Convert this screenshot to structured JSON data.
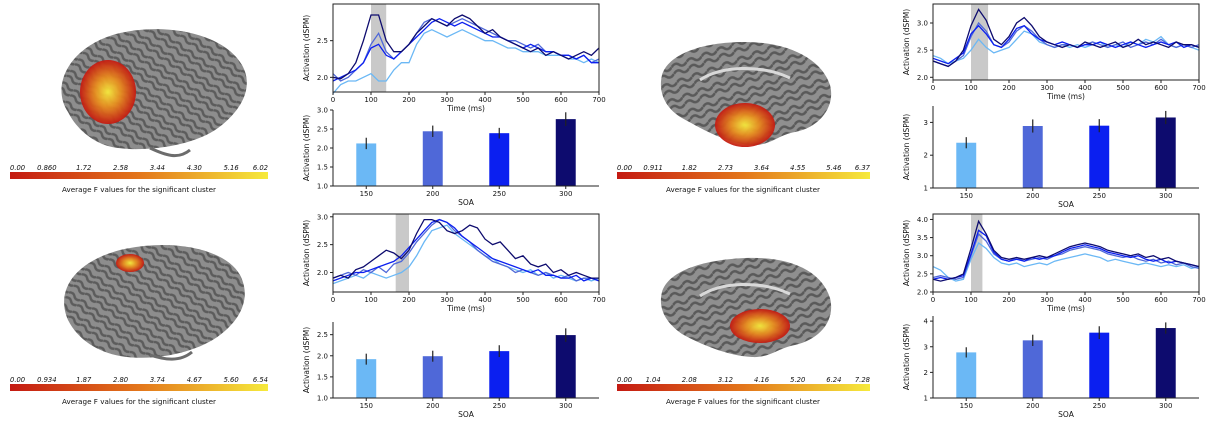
{
  "colorbar_label": "Average F values for the significant cluster",
  "soa_colors": {
    "150": "#6bb8f5",
    "200": "#4f68d8",
    "250": "#0b1ff0",
    "300": "#0d0b6e"
  },
  "activation_color": {
    "low": "#c41a12",
    "mid": "#e3761b",
    "high": "#f6ea3c"
  },
  "chart_data": [
    {
      "panel": "top-left",
      "type": "line",
      "xlabel": "Time (ms)",
      "ylabel": "Activation (dSPM)",
      "xlim": [
        0,
        700
      ],
      "ylim": [
        1.8,
        3.0
      ],
      "xticks": [
        "0",
        "100",
        "200",
        "300",
        "400",
        "500",
        "600",
        "700"
      ],
      "xtick_values": [
        0,
        100,
        200,
        300,
        400,
        500,
        600,
        700
      ],
      "yticks": [
        "2.0",
        "2.5"
      ],
      "ytick_values": [
        2.0,
        2.5
      ],
      "shaded_window": [
        100,
        140
      ],
      "x": [
        0,
        20,
        40,
        60,
        80,
        100,
        120,
        140,
        160,
        180,
        200,
        220,
        240,
        260,
        280,
        300,
        320,
        340,
        360,
        380,
        400,
        420,
        440,
        460,
        480,
        500,
        520,
        540,
        560,
        580,
        600,
        620,
        640,
        660,
        680,
        700
      ],
      "series": [
        {
          "name": "150",
          "values": [
            1.78,
            1.9,
            1.95,
            1.95,
            2.0,
            2.05,
            1.95,
            1.95,
            2.1,
            2.2,
            2.2,
            2.45,
            2.6,
            2.65,
            2.6,
            2.55,
            2.6,
            2.65,
            2.6,
            2.55,
            2.5,
            2.5,
            2.45,
            2.4,
            2.4,
            2.35,
            2.35,
            2.35,
            2.3,
            2.3,
            2.3,
            2.25,
            2.25,
            2.2,
            2.25,
            2.2
          ]
        },
        {
          "name": "200",
          "values": [
            2.05,
            1.95,
            2.0,
            2.1,
            2.2,
            2.45,
            2.6,
            2.35,
            2.25,
            2.35,
            2.45,
            2.6,
            2.75,
            2.8,
            2.75,
            2.7,
            2.75,
            2.8,
            2.75,
            2.7,
            2.65,
            2.6,
            2.55,
            2.5,
            2.5,
            2.45,
            2.4,
            2.45,
            2.35,
            2.35,
            2.3,
            2.3,
            2.25,
            2.3,
            2.2,
            2.25
          ]
        },
        {
          "name": "250",
          "values": [
            1.95,
            2.0,
            2.05,
            2.1,
            2.2,
            2.4,
            2.45,
            2.3,
            2.25,
            2.35,
            2.45,
            2.55,
            2.65,
            2.75,
            2.8,
            2.75,
            2.7,
            2.75,
            2.7,
            2.65,
            2.6,
            2.55,
            2.55,
            2.5,
            2.45,
            2.4,
            2.45,
            2.4,
            2.35,
            2.35,
            2.3,
            2.3,
            2.25,
            2.3,
            2.2,
            2.2
          ]
        },
        {
          "name": "300",
          "values": [
            2.0,
            1.98,
            2.05,
            2.2,
            2.5,
            2.85,
            2.85,
            2.5,
            2.35,
            2.35,
            2.45,
            2.6,
            2.7,
            2.8,
            2.75,
            2.7,
            2.8,
            2.85,
            2.8,
            2.7,
            2.6,
            2.65,
            2.55,
            2.5,
            2.45,
            2.4,
            2.35,
            2.4,
            2.3,
            2.35,
            2.3,
            2.25,
            2.3,
            2.35,
            2.3,
            2.4
          ]
        }
      ]
    },
    {
      "panel": "top-left",
      "type": "bar",
      "categories": [
        "150",
        "200",
        "250",
        "300"
      ],
      "values": [
        2.12,
        2.44,
        2.39,
        2.76
      ],
      "errors": [
        0.15,
        0.15,
        0.14,
        0.18
      ],
      "xlabel": "SOA",
      "ylabel": "Activation (dSPM)",
      "ylim": [
        1.0,
        3.0
      ],
      "yticks": [
        "1.0",
        "1.5",
        "2.0",
        "2.5",
        "3.0"
      ],
      "ytick_values": [
        1.0,
        1.5,
        2.0,
        2.5,
        3.0
      ]
    },
    {
      "panel": "top-right",
      "type": "line",
      "xlabel": "Time (ms)",
      "ylabel": "Activation (dSPM)",
      "xlim": [
        0,
        700
      ],
      "ylim": [
        1.95,
        3.35
      ],
      "xticks": [
        "0",
        "100",
        "200",
        "300",
        "400",
        "500",
        "600",
        "700"
      ],
      "xtick_values": [
        0,
        100,
        200,
        300,
        400,
        500,
        600,
        700
      ],
      "yticks": [
        "2.0",
        "2.5",
        "3.0"
      ],
      "ytick_values": [
        2.0,
        2.5,
        3.0
      ],
      "shaded_window": [
        100,
        145
      ],
      "x": [
        0,
        20,
        40,
        60,
        80,
        100,
        120,
        140,
        160,
        180,
        200,
        220,
        240,
        260,
        280,
        300,
        320,
        340,
        360,
        380,
        400,
        420,
        440,
        460,
        480,
        500,
        520,
        540,
        560,
        580,
        600,
        620,
        640,
        660,
        680,
        700
      ],
      "series": [
        {
          "name": "150",
          "values": [
            2.4,
            2.35,
            2.25,
            2.3,
            2.35,
            2.5,
            2.7,
            2.55,
            2.45,
            2.5,
            2.55,
            2.7,
            2.85,
            2.8,
            2.65,
            2.6,
            2.55,
            2.6,
            2.55,
            2.6,
            2.55,
            2.6,
            2.65,
            2.55,
            2.6,
            2.55,
            2.65,
            2.6,
            2.7,
            2.65,
            2.75,
            2.6,
            2.55,
            2.6,
            2.55,
            2.5
          ]
        },
        {
          "name": "200",
          "values": [
            2.3,
            2.25,
            2.2,
            2.3,
            2.4,
            2.75,
            3.0,
            2.85,
            2.6,
            2.55,
            2.65,
            2.85,
            2.95,
            2.85,
            2.7,
            2.6,
            2.55,
            2.6,
            2.6,
            2.55,
            2.6,
            2.65,
            2.6,
            2.55,
            2.6,
            2.65,
            2.55,
            2.6,
            2.65,
            2.6,
            2.7,
            2.6,
            2.55,
            2.6,
            2.55,
            2.6
          ]
        },
        {
          "name": "250",
          "values": [
            2.35,
            2.3,
            2.25,
            2.35,
            2.45,
            2.8,
            2.95,
            2.8,
            2.6,
            2.55,
            2.7,
            2.9,
            2.95,
            2.8,
            2.7,
            2.65,
            2.6,
            2.65,
            2.6,
            2.55,
            2.6,
            2.6,
            2.65,
            2.6,
            2.55,
            2.6,
            2.65,
            2.6,
            2.55,
            2.6,
            2.65,
            2.6,
            2.65,
            2.55,
            2.6,
            2.55
          ]
        },
        {
          "name": "300",
          "values": [
            2.3,
            2.25,
            2.2,
            2.3,
            2.5,
            2.95,
            3.25,
            3.05,
            2.7,
            2.6,
            2.75,
            3.0,
            3.1,
            2.95,
            2.75,
            2.65,
            2.6,
            2.55,
            2.6,
            2.55,
            2.65,
            2.6,
            2.55,
            2.6,
            2.65,
            2.55,
            2.6,
            2.7,
            2.6,
            2.65,
            2.6,
            2.55,
            2.65,
            2.6,
            2.6,
            2.55
          ]
        }
      ]
    },
    {
      "panel": "top-right",
      "type": "bar",
      "categories": [
        "150",
        "200",
        "250",
        "300"
      ],
      "values": [
        2.38,
        2.89,
        2.9,
        3.15
      ],
      "errors": [
        0.17,
        0.2,
        0.2,
        0.2
      ],
      "xlabel": "SOA",
      "ylabel": "Activation (dSPM)",
      "ylim": [
        1.0,
        3.5
      ],
      "yticks": [
        "1",
        "2",
        "3"
      ],
      "ytick_values": [
        1,
        2,
        3
      ]
    },
    {
      "panel": "bottom-left",
      "type": "line",
      "xlabel": "Time (ms)",
      "ylabel": "Activation (dSPM)",
      "xlim": [
        0,
        700
      ],
      "ylim": [
        1.65,
        3.05
      ],
      "xticks": [
        "0",
        "100",
        "200",
        "300",
        "400",
        "500",
        "600",
        "700"
      ],
      "xtick_values": [
        0,
        100,
        200,
        300,
        400,
        500,
        600,
        700
      ],
      "yticks": [
        "2.0",
        "2.5",
        "3.0"
      ],
      "ytick_values": [
        2.0,
        2.5,
        3.0
      ],
      "shaded_window": [
        165,
        200
      ],
      "x": [
        0,
        20,
        40,
        60,
        80,
        100,
        120,
        140,
        160,
        180,
        200,
        220,
        240,
        260,
        280,
        300,
        320,
        340,
        360,
        380,
        400,
        420,
        440,
        460,
        480,
        500,
        520,
        540,
        560,
        580,
        600,
        620,
        640,
        660,
        680,
        700
      ],
      "series": [
        {
          "name": "150",
          "values": [
            1.8,
            1.85,
            1.9,
            1.95,
            1.9,
            2.0,
            1.95,
            1.9,
            1.95,
            2.0,
            2.1,
            2.3,
            2.55,
            2.75,
            2.8,
            2.85,
            2.7,
            2.6,
            2.5,
            2.4,
            2.3,
            2.25,
            2.15,
            2.1,
            2.05,
            2.0,
            2.05,
            1.95,
            2.0,
            1.9,
            1.95,
            1.9,
            1.85,
            1.9,
            1.85,
            1.9
          ]
        },
        {
          "name": "200",
          "values": [
            1.9,
            1.95,
            2.0,
            1.95,
            2.05,
            2.0,
            2.1,
            2.0,
            2.15,
            2.2,
            2.35,
            2.55,
            2.7,
            2.85,
            2.95,
            2.9,
            2.75,
            2.65,
            2.55,
            2.4,
            2.3,
            2.2,
            2.15,
            2.1,
            2.0,
            2.05,
            2.0,
            1.95,
            2.0,
            1.95,
            1.9,
            1.95,
            1.85,
            1.9,
            1.9,
            1.85
          ]
        },
        {
          "name": "250",
          "values": [
            1.85,
            1.9,
            1.95,
            2.0,
            2.0,
            2.05,
            2.1,
            2.15,
            2.2,
            2.3,
            2.45,
            2.6,
            2.75,
            2.9,
            2.95,
            2.9,
            2.8,
            2.65,
            2.55,
            2.45,
            2.35,
            2.25,
            2.2,
            2.15,
            2.1,
            2.05,
            2.0,
            2.05,
            1.95,
            1.95,
            1.9,
            1.9,
            1.95,
            1.85,
            1.9,
            1.85
          ]
        },
        {
          "name": "300",
          "values": [
            1.9,
            1.95,
            1.9,
            2.05,
            2.1,
            2.2,
            2.3,
            2.4,
            2.35,
            2.25,
            2.4,
            2.7,
            2.95,
            2.95,
            2.9,
            2.75,
            2.7,
            2.75,
            2.85,
            2.8,
            2.6,
            2.5,
            2.55,
            2.4,
            2.25,
            2.3,
            2.15,
            2.1,
            2.15,
            2.0,
            2.05,
            1.95,
            2.0,
            1.95,
            1.9,
            1.9
          ]
        }
      ]
    },
    {
      "panel": "bottom-left",
      "type": "bar",
      "categories": [
        "150",
        "200",
        "250",
        "300"
      ],
      "values": [
        1.92,
        1.99,
        2.11,
        2.49
      ],
      "errors": [
        0.13,
        0.13,
        0.14,
        0.16
      ],
      "xlabel": "SOA",
      "ylabel": "Activation (dSPM)",
      "ylim": [
        1.0,
        2.8
      ],
      "yticks": [
        "1.0",
        "1.5",
        "2.0",
        "2.5"
      ],
      "ytick_values": [
        1.0,
        1.5,
        2.0,
        2.5
      ]
    },
    {
      "panel": "bottom-right",
      "type": "line",
      "xlabel": "Time (ms)",
      "ylabel": "Activation (dSPM)",
      "xlim": [
        0,
        700
      ],
      "ylim": [
        2.0,
        4.15
      ],
      "xticks": [
        "0",
        "100",
        "200",
        "300",
        "400",
        "500",
        "600",
        "700"
      ],
      "xtick_values": [
        0,
        100,
        200,
        300,
        400,
        500,
        600,
        700
      ],
      "yticks": [
        "2.0",
        "2.5",
        "3.0",
        "3.5",
        "4.0"
      ],
      "ytick_values": [
        2.0,
        2.5,
        3.0,
        3.5,
        4.0
      ],
      "shaded_window": [
        100,
        130
      ],
      "x": [
        0,
        20,
        40,
        60,
        80,
        100,
        120,
        140,
        160,
        180,
        200,
        220,
        240,
        260,
        280,
        300,
        320,
        340,
        360,
        380,
        400,
        420,
        440,
        460,
        480,
        500,
        520,
        540,
        560,
        580,
        600,
        620,
        640,
        660,
        680,
        700
      ],
      "series": [
        {
          "name": "150",
          "values": [
            2.7,
            2.6,
            2.4,
            2.3,
            2.35,
            2.9,
            3.35,
            3.2,
            2.95,
            2.8,
            2.75,
            2.8,
            2.7,
            2.75,
            2.8,
            2.75,
            2.85,
            2.9,
            2.95,
            3.0,
            3.05,
            3.0,
            2.95,
            2.85,
            2.9,
            2.85,
            2.8,
            2.75,
            2.8,
            2.75,
            2.7,
            2.75,
            2.7,
            2.75,
            2.65,
            2.7
          ]
        },
        {
          "name": "200",
          "values": [
            2.4,
            2.45,
            2.4,
            2.35,
            2.4,
            3.0,
            3.6,
            3.4,
            3.05,
            2.9,
            2.85,
            2.95,
            2.85,
            2.9,
            2.95,
            2.9,
            3.0,
            3.05,
            3.15,
            3.2,
            3.25,
            3.2,
            3.15,
            3.05,
            3.0,
            2.95,
            3.0,
            2.9,
            2.85,
            2.9,
            2.8,
            2.85,
            2.75,
            2.8,
            2.7,
            2.65
          ]
        },
        {
          "name": "250",
          "values": [
            2.35,
            2.4,
            2.35,
            2.4,
            2.45,
            3.05,
            3.7,
            3.55,
            3.1,
            2.9,
            2.85,
            2.9,
            2.85,
            2.95,
            2.9,
            2.95,
            3.0,
            3.1,
            3.2,
            3.25,
            3.3,
            3.25,
            3.2,
            3.1,
            3.05,
            3.0,
            2.95,
            3.0,
            2.9,
            2.85,
            2.9,
            2.8,
            2.85,
            2.8,
            2.75,
            2.7
          ]
        },
        {
          "name": "300",
          "values": [
            2.35,
            2.3,
            2.35,
            2.4,
            2.5,
            3.2,
            3.95,
            3.6,
            3.15,
            2.95,
            2.9,
            2.95,
            2.9,
            2.95,
            3.0,
            2.95,
            3.05,
            3.15,
            3.25,
            3.3,
            3.35,
            3.3,
            3.25,
            3.15,
            3.1,
            3.05,
            3.0,
            3.05,
            2.95,
            3.0,
            2.9,
            2.95,
            2.85,
            2.8,
            2.75,
            2.7
          ]
        }
      ]
    },
    {
      "panel": "bottom-right",
      "type": "bar",
      "categories": [
        "150",
        "200",
        "250",
        "300"
      ],
      "values": [
        2.78,
        3.25,
        3.55,
        3.73
      ],
      "errors": [
        0.2,
        0.22,
        0.25,
        0.22
      ],
      "xlabel": "SOA",
      "ylabel": "Activation (dSPM)",
      "ylim": [
        1.0,
        4.2
      ],
      "yticks": [
        "1",
        "2",
        "3",
        "4"
      ],
      "ytick_values": [
        1,
        2,
        3,
        4
      ]
    }
  ],
  "colorbars": [
    {
      "panel": "top-left",
      "ticks": [
        "0.00",
        "0.860",
        "1.72",
        "2.58",
        "3.44",
        "4.30",
        "5.16",
        "6.02"
      ]
    },
    {
      "panel": "top-right",
      "ticks": [
        "0.00",
        "0.911",
        "1.82",
        "2.73",
        "3.64",
        "4.55",
        "5.46",
        "6.37"
      ]
    },
    {
      "panel": "bottom-left",
      "ticks": [
        "0.00",
        "0.934",
        "1.87",
        "2.80",
        "3.74",
        "4.67",
        "5.60",
        "6.54"
      ]
    },
    {
      "panel": "bottom-right",
      "ticks": [
        "0.00",
        "1.04",
        "2.08",
        "3.12",
        "4.16",
        "5.20",
        "6.24",
        "7.28"
      ]
    }
  ]
}
